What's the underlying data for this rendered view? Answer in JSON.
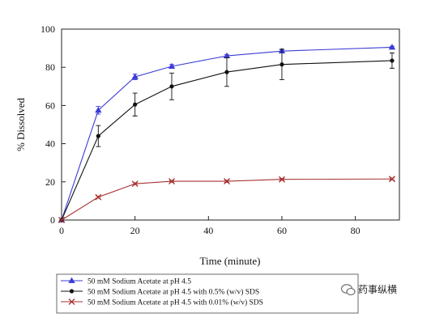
{
  "chart_data": {
    "type": "line",
    "title": "",
    "xlabel": "Time (minute)",
    "ylabel": "% Dissolved",
    "xlim": [
      0,
      92
    ],
    "ylim": [
      0,
      100
    ],
    "x_ticks": [
      0,
      20,
      40,
      60,
      80
    ],
    "y_ticks": [
      0,
      20,
      40,
      60,
      80,
      100
    ],
    "grid": false,
    "legend_position": "bottom-left",
    "series": [
      {
        "name": "50 mM Sodium Acetate at pH 4.5",
        "color": "#3b3bd6",
        "marker": "triangle",
        "x": [
          0,
          10,
          20,
          30,
          45,
          60,
          90
        ],
        "y": [
          0,
          57.5,
          75,
          80.5,
          86,
          88.5,
          90.5
        ],
        "err": [
          0,
          2,
          1.5,
          1,
          0.7,
          0.6,
          0.5
        ]
      },
      {
        "name": "50 mM Sodium Acetate at pH 4.5 with 0.5% (w/v) SDS",
        "color": "#111111",
        "marker": "circle",
        "x": [
          0,
          10,
          20,
          30,
          45,
          60,
          90
        ],
        "y": [
          0,
          44,
          60.5,
          70,
          77.5,
          81.5,
          83.5
        ],
        "err": [
          0,
          5.5,
          6,
          7,
          7.5,
          8,
          4
        ]
      },
      {
        "name": "50 mM Sodium Acetate at pH 4.5 with 0.01% (w/v) SDS",
        "color": "#a83232",
        "marker": "x",
        "x": [
          0,
          10,
          20,
          30,
          45,
          60,
          90
        ],
        "y": [
          0,
          12,
          19,
          20.3,
          20.3,
          21.3,
          21.5
        ],
        "err": [
          0,
          0.5,
          0.5,
          0.5,
          0.6,
          0.5,
          0.5
        ]
      }
    ]
  },
  "watermark": {
    "icon": "wechat-icon",
    "text": "药事纵横"
  }
}
